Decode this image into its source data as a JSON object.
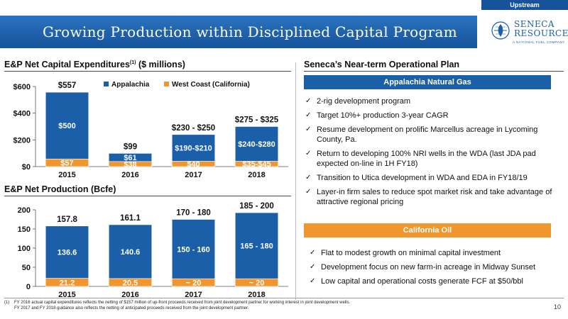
{
  "header": {
    "tag": "Upstream",
    "title": "Growing Production within Disciplined Capital Program",
    "logo_name_line1": "SENECA",
    "logo_name_line2": "RESOURCES",
    "logo_tagline": "A NATIONAL FUEL COMPANY"
  },
  "capex_section": {
    "title": "E&P Net Capital Expenditures",
    "superscript": "(1)",
    "units": "($ millions)"
  },
  "production_section": {
    "title": "E&P Net Production (Bcfe)"
  },
  "plan_section": {
    "title": "Seneca’s Near-term Operational Plan",
    "appalachia_band": "Appalachia Natural Gas",
    "appalachia_bullets": [
      "2-rig development program",
      "Target 10%+ production 3-year CAGR",
      "Resume development on prolific Marcellus acreage in Lycoming County, Pa.",
      "Return to developing 100% NRI wells in the WDA (last JDA pad expected on-line in 1H FY18)",
      "Transition to Utica development in WDA and EDA in FY18/19",
      "Layer-in firm sales to reduce spot market risk and take advantage of attractive regional pricing"
    ],
    "california_band": "California Oil",
    "california_bullets": [
      "Flat to modest growth on minimal capital investment",
      "Development focus on new farm-in acreage in Midway Sunset",
      "Low capital and operational costs generate FCF at $50/bbl"
    ]
  },
  "footnote": {
    "marker": "(1)",
    "line1": "FY 2016 actual capital expenditures reflects the netting of $157 million of up-front proceeds received from joint development partner for working interest in joint development wells.",
    "line2": "FY 2017 and FY 2018 guidance also reflects the netting of anticipated proceeds received from the joint development partner."
  },
  "page_number": "10",
  "colors": {
    "brand_blue": "#1a5fa8",
    "appalachia": "#1a5fa8",
    "west_coast": "#f0962d"
  },
  "chart_data": [
    {
      "type": "bar",
      "stacked": true,
      "categories": [
        "2015",
        "2016",
        "2017",
        "2018"
      ],
      "ylim": [
        0,
        600
      ],
      "yticks": [
        "$0",
        "$200",
        "$400",
        "$600"
      ],
      "legend": [
        "Appalachia",
        "West Coast (California)"
      ],
      "legend_position": "top",
      "series": [
        {
          "name": "West Coast (California)",
          "values": [
            57,
            38,
            40,
            40
          ],
          "labels": [
            "$57",
            "$38",
            "$40",
            "$35-$45"
          ],
          "color": "#f0962d"
        },
        {
          "name": "Appalachia",
          "values": [
            500,
            61,
            200,
            260
          ],
          "labels": [
            "$500",
            "$61",
            "$190-$210",
            "$240-$280"
          ],
          "color": "#1a5fa8"
        }
      ],
      "totals": [
        "$557",
        "$99",
        "$230 - $250",
        "$275 - $325"
      ],
      "total_values": [
        557,
        99,
        240,
        300
      ],
      "grid": false
    },
    {
      "type": "bar",
      "stacked": true,
      "categories": [
        "2015",
        "2016",
        "2017",
        "2018"
      ],
      "ylim": [
        0,
        200
      ],
      "yticks": [
        "0",
        "50",
        "100",
        "150",
        "200"
      ],
      "series": [
        {
          "values": [
            21.2,
            20.5,
            20,
            20
          ],
          "labels": [
            "21.2",
            "20.5",
            "~ 20",
            "~ 20"
          ],
          "color": "#f0962d"
        },
        {
          "values": [
            136.6,
            140.6,
            155,
            172.5
          ],
          "labels": [
            "136.6",
            "140.6",
            "150 - 160",
            "165 - 180"
          ],
          "color": "#1a5fa8"
        }
      ],
      "totals": [
        "157.8",
        "161.1",
        "170 - 180",
        "185 - 200"
      ],
      "total_values": [
        157.8,
        161.1,
        175,
        192.5
      ],
      "grid": false
    }
  ]
}
